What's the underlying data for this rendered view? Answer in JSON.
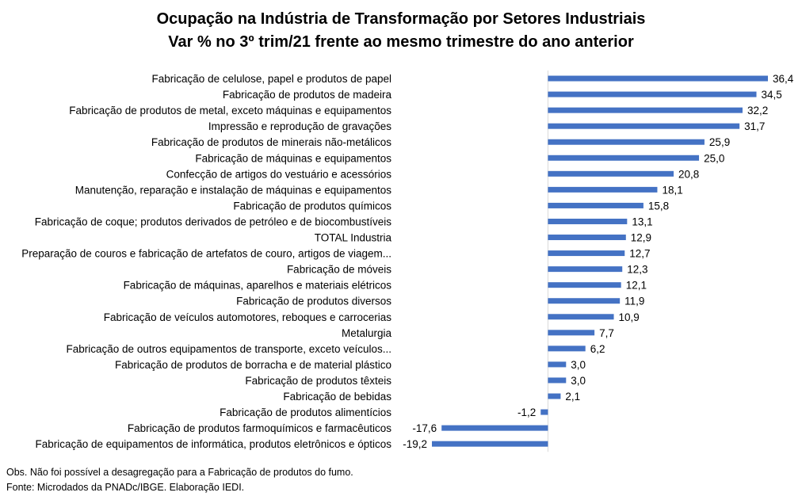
{
  "chart_data": {
    "type": "bar",
    "orientation": "horizontal",
    "title": "Ocupação na Indústria de Transformação por Setores Industriais",
    "subtitle": "Var % no 3º trim/21 frente ao mesmo trimestre do ano anterior",
    "categories": [
      "Fabricação de celulose, papel e produtos de papel",
      "Fabricação de produtos de madeira",
      "Fabricação de produtos de metal, exceto máquinas e equipamentos",
      "Impressão e reprodução de gravações",
      "Fabricação de produtos de minerais não-metálicos",
      "Fabricação de máquinas e equipamentos",
      "Confecção de artigos do vestuário e acessórios",
      "Manutenção, reparação e instalação de máquinas e equipamentos",
      "Fabricação de produtos químicos",
      "Fabricação de coque; produtos derivados de petróleo e de biocombustíveis",
      "TOTAL Industria",
      "Preparação de couros e fabricação de artefatos de couro, artigos de viagem...",
      "Fabricação de móveis",
      "Fabricação de máquinas, aparelhos e materiais elétricos",
      "Fabricação de produtos diversos",
      "Fabricação de veículos automotores, reboques e carrocerias",
      "Metalurgia",
      "Fabricação de outros equipamentos de transporte, exceto veículos...",
      "Fabricação de produtos de borracha e de material plástico",
      "Fabricação de produtos têxteis",
      "Fabricação de bebidas",
      "Fabricação de produtos alimentícios",
      "Fabricação de produtos farmoquímicos e farmacêuticos",
      "Fabricação de equipamentos de informática, produtos eletrônicos e ópticos"
    ],
    "values": [
      36.4,
      34.5,
      32.2,
      31.7,
      25.9,
      25.0,
      20.8,
      18.1,
      15.8,
      13.1,
      12.9,
      12.7,
      12.3,
      12.1,
      11.9,
      10.9,
      7.7,
      6.2,
      3.0,
      3.0,
      2.1,
      -1.2,
      -17.6,
      -19.2
    ],
    "value_labels": [
      "36,4",
      "34,5",
      "32,2",
      "31,7",
      "25,9",
      "25,0",
      "20,8",
      "18,1",
      "15,8",
      "13,1",
      "12,9",
      "12,7",
      "12,3",
      "12,1",
      "11,9",
      "10,9",
      "7,7",
      "6,2",
      "3,0",
      "3,0",
      "2,1",
      "-1,2",
      "-17,6",
      "-19,2"
    ],
    "xlim": [
      -19.2,
      36.4
    ],
    "bar_color": "#4472C4",
    "axis_line_color": "#D9D9D9",
    "grid": false,
    "legend": "none"
  },
  "notes": {
    "obs": "Obs. Não foi possível a desagregação para a Fabricação de produtos do fumo.",
    "source": "Fonte: Microdados da PNADc/IBGE. Elaboração IEDI."
  }
}
